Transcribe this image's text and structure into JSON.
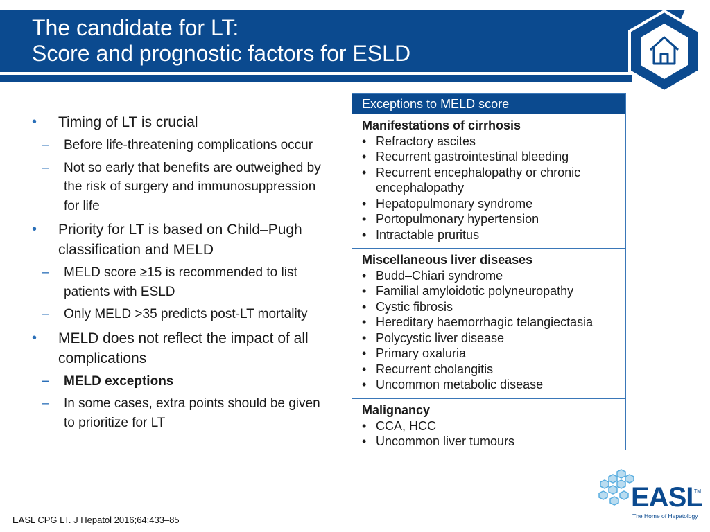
{
  "title": {
    "line1": "The candidate for LT:",
    "line2": "Score and prognostic factors for ESLD"
  },
  "colors": {
    "brand": "#0b4a8f",
    "accent": "#2a6fb8"
  },
  "home_icon": "home-icon",
  "bullets": [
    {
      "text": "Timing of LT is crucial",
      "subs": [
        {
          "text": "Before life-threatening complications occur"
        },
        {
          "text": "Not so early that benefits are outweighed by the risk of surgery and immunosuppression for life"
        }
      ]
    },
    {
      "text": "Priority for LT is based on Child–Pugh classification and MELD",
      "subs": [
        {
          "text": "MELD score ≥15 is recommended to list patients with ESLD"
        },
        {
          "text": "Only MELD >35 predicts post-LT mortality"
        }
      ]
    },
    {
      "text": "MELD does not reflect the impact of all complications",
      "subs": [
        {
          "text": "MELD exceptions",
          "bold": true
        },
        {
          "text": "In some cases, extra points should be given to prioritize for LT"
        }
      ]
    }
  ],
  "exceptions": {
    "header": "Exceptions to MELD score",
    "sections": [
      {
        "title": "Manifestations of cirrhosis",
        "items": [
          "Refractory ascites",
          "Recurrent gastrointestinal bleeding",
          "Recurrent encephalopathy or chronic encephalopathy",
          "Hepatopulmonary syndrome",
          "Portopulmonary hypertension",
          "Intractable pruritus"
        ]
      },
      {
        "title": "Miscellaneous liver diseases",
        "items": [
          "Budd–Chiari syndrome",
          "Familial amyloidotic polyneuropathy",
          "Cystic fibrosis",
          "Hereditary haemorrhagic telangiectasia",
          "Polycystic liver disease",
          "Primary oxaluria",
          "Recurrent cholangitis",
          "Uncommon metabolic disease"
        ]
      },
      {
        "title": "Malignancy",
        "items": [
          "CCA, HCC",
          "Uncommon liver tumours"
        ]
      }
    ]
  },
  "citation": "EASL CPG LT. J Hepatol 2016;64:433–85",
  "logo": {
    "name": "EASL",
    "tm": "TM",
    "tagline": "The Home of Hepatology"
  }
}
